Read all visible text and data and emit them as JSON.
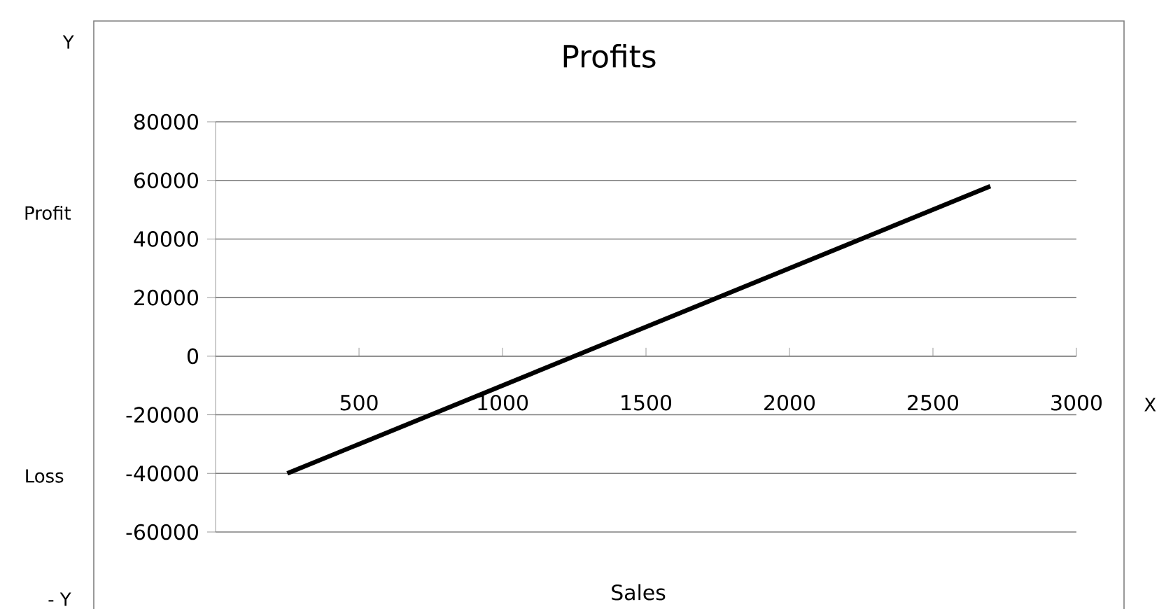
{
  "chart_data": {
    "type": "line",
    "title": "Profits",
    "xlabel": "Sales",
    "annotations": [
      "Y",
      "Profit",
      "Loss",
      "- Y",
      "X"
    ],
    "x": [
      250,
      2700
    ],
    "series": [
      {
        "color": "#000000",
        "values": [
          -40000,
          58000
        ]
      }
    ],
    "xlim": [
      0,
      3000
    ],
    "xticks": [
      500,
      1000,
      1500,
      2000,
      2500,
      3000
    ],
    "ylim": [
      -60000,
      80000
    ],
    "yticks": [
      -60000,
      -40000,
      -20000,
      0,
      20000,
      40000,
      60000,
      80000
    ],
    "grid": "y"
  }
}
